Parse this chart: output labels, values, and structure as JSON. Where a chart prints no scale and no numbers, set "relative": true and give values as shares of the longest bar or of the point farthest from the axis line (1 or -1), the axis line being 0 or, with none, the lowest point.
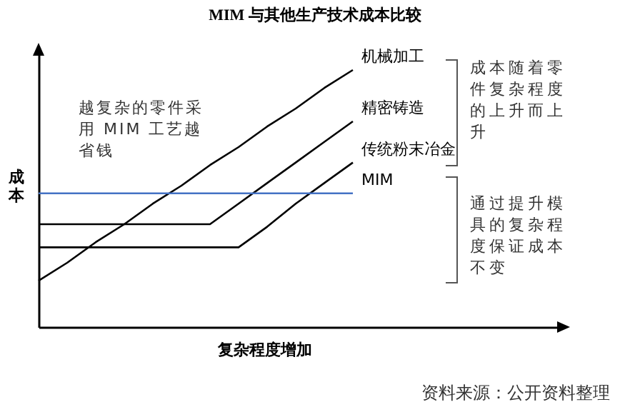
{
  "chart_data": {
    "type": "line",
    "title": "MIM 与其他生产技术成本比较",
    "xlabel": "复杂程度增加",
    "ylabel": "成本",
    "relative": true,
    "legend": false,
    "grid": false,
    "tick_labels": false,
    "categories": [
      null,
      null,
      null,
      null,
      null,
      null,
      null,
      null,
      null,
      null,
      null,
      null
    ],
    "series": [
      {
        "name": "机械加工",
        "color": "#000000",
        "values": [
          0.18,
          0.25,
          0.33,
          0.4,
          0.48,
          0.55,
          0.63,
          0.7,
          0.78,
          0.85,
          0.93,
          1.0
        ]
      },
      {
        "name": "精密铸造",
        "color": "#000000",
        "values": [
          0.4,
          0.4,
          0.4,
          0.4,
          0.4,
          0.4,
          0.4,
          0.48,
          0.56,
          0.64,
          0.72,
          0.8
        ]
      },
      {
        "name": "传统粉末冶金",
        "color": "#000000",
        "values": [
          0.31,
          0.31,
          0.31,
          0.31,
          0.31,
          0.31,
          0.31,
          0.31,
          0.39,
          0.48,
          0.56,
          0.64
        ]
      },
      {
        "name": "MIM",
        "color": "#4472c4",
        "values": [
          0.52,
          0.52,
          0.52,
          0.52,
          0.52,
          0.52,
          0.52,
          0.52,
          0.52,
          0.52,
          0.52,
          0.52
        ]
      }
    ],
    "annotations": [
      "越复杂的零件采用 MIM 工艺越省钱",
      "成本随着零件复杂程度的上升而上升",
      "通过提升模具的复杂程度保证成本不变",
      "资料来源：公开资料整理"
    ]
  }
}
